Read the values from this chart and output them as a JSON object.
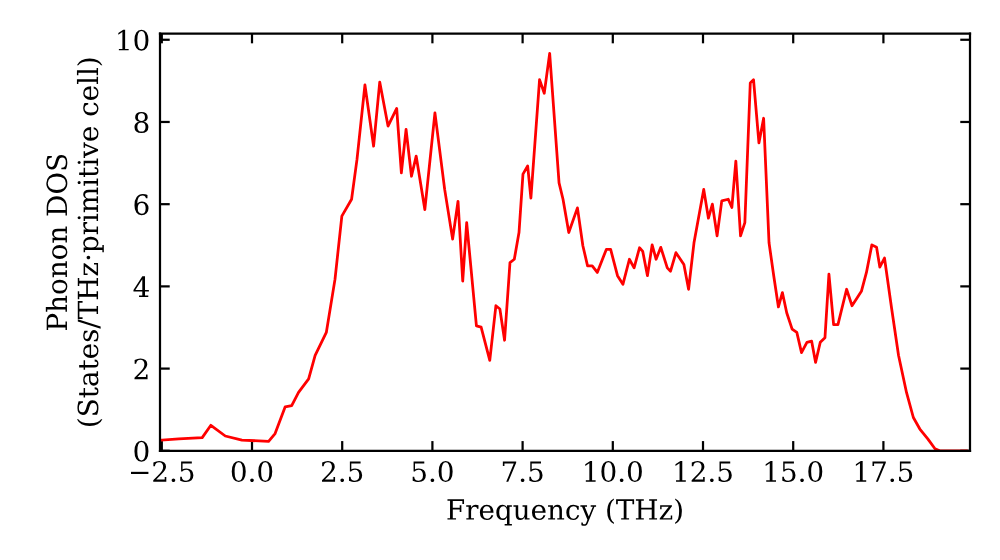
{
  "chart_data": {
    "type": "line",
    "xlabel": "Frequency (THz)",
    "ylabel": "Phonon DOS\n(States/THz·primitive cell)",
    "x": [
      -2.49,
      -2.03,
      -1.38,
      -1.14,
      -0.74,
      -0.28,
      0.46,
      0.64,
      0.92,
      1.1,
      1.29,
      1.57,
      1.75,
      2.06,
      2.3,
      2.49,
      2.76,
      2.91,
      3.13,
      3.37,
      3.54,
      3.77,
      4.01,
      4.14,
      4.27,
      4.42,
      4.55,
      4.79,
      5.07,
      5.34,
      5.56,
      5.71,
      5.84,
      5.95,
      6.22,
      6.35,
      6.59,
      6.76,
      6.87,
      7.0,
      7.15,
      7.27,
      7.4,
      7.51,
      7.64,
      7.73,
      7.97,
      8.1,
      8.25,
      8.51,
      8.62,
      8.78,
      9.02,
      9.17,
      9.3,
      9.43,
      9.57,
      9.82,
      9.94,
      10.13,
      10.28,
      10.46,
      10.59,
      10.74,
      10.83,
      10.96,
      11.09,
      11.2,
      11.33,
      11.51,
      11.6,
      11.75,
      11.97,
      12.1,
      12.25,
      12.52,
      12.65,
      12.76,
      12.89,
      13.02,
      13.2,
      13.3,
      13.41,
      13.54,
      13.66,
      13.81,
      13.9,
      14.05,
      14.18,
      14.33,
      14.46,
      14.59,
      14.7,
      14.82,
      14.97,
      15.1,
      15.23,
      15.38,
      15.51,
      15.62,
      15.75,
      15.88,
      15.99,
      16.12,
      16.24,
      16.48,
      16.63,
      16.89,
      17.03,
      17.18,
      17.31,
      17.4,
      17.53,
      17.73,
      17.92,
      18.14,
      18.33,
      18.51,
      18.73,
      18.93,
      19.06,
      19.8
    ],
    "series": [
      {
        "color": "#ff0000",
        "values": [
          0.26,
          0.29,
          0.32,
          0.62,
          0.36,
          0.26,
          0.23,
          0.42,
          1.07,
          1.1,
          1.42,
          1.75,
          2.32,
          2.88,
          4.17,
          5.71,
          6.12,
          7.09,
          8.9,
          7.41,
          8.97,
          7.9,
          8.33,
          6.76,
          7.82,
          6.68,
          7.17,
          5.87,
          8.22,
          6.36,
          5.15,
          6.07,
          4.13,
          5.55,
          3.04,
          3.01,
          2.2,
          3.53,
          3.45,
          2.69,
          4.58,
          4.66,
          5.31,
          6.73,
          6.93,
          6.15,
          9.03,
          8.7,
          9.67,
          6.52,
          6.12,
          5.31,
          5.91,
          4.99,
          4.5,
          4.5,
          4.34,
          4.9,
          4.9,
          4.26,
          4.05,
          4.66,
          4.45,
          4.94,
          4.85,
          4.26,
          5.01,
          4.66,
          4.95,
          4.45,
          4.37,
          4.82,
          4.53,
          3.93,
          5.06,
          6.36,
          5.66,
          6.0,
          5.23,
          6.08,
          6.12,
          5.92,
          7.05,
          5.23,
          5.55,
          8.95,
          9.03,
          7.49,
          8.09,
          5.06,
          4.26,
          3.5,
          3.85,
          3.36,
          2.96,
          2.88,
          2.39,
          2.64,
          2.67,
          2.15,
          2.64,
          2.75,
          4.3,
          3.07,
          3.07,
          3.93,
          3.53,
          3.88,
          4.34,
          5.01,
          4.95,
          4.47,
          4.69,
          3.45,
          2.32,
          1.42,
          0.81,
          0.53,
          0.29,
          0.05,
          0.0,
          0.0
        ]
      }
    ],
    "xlim": [
      -2.55,
      19.9
    ],
    "ylim": [
      0,
      10.15
    ],
    "xticks": [
      {
        "value": -2.5,
        "label": "−2.5"
      },
      {
        "value": 0,
        "label": "0.0"
      },
      {
        "value": 2.5,
        "label": "2.5"
      },
      {
        "value": 5,
        "label": "5.0"
      },
      {
        "value": 7.5,
        "label": "7.5"
      },
      {
        "value": 10,
        "label": "10.0"
      },
      {
        "value": 12.5,
        "label": "12.5"
      },
      {
        "value": 15,
        "label": "15.0"
      },
      {
        "value": 17.5,
        "label": "17.5"
      }
    ],
    "yticks": [
      0,
      2,
      4,
      6,
      8,
      10
    ],
    "grid": false,
    "legend": false,
    "marker": "none",
    "line_style": "solid"
  }
}
